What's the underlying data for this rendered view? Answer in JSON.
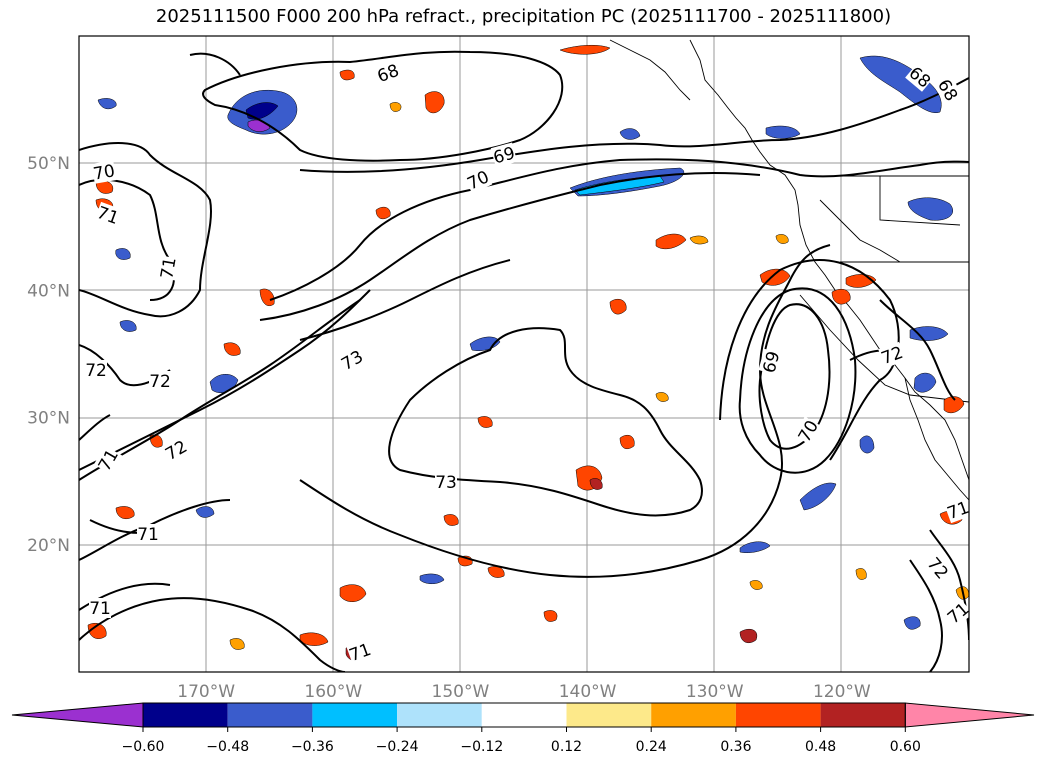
{
  "title": "2025111500 F000 200 hPa refract., precipitation PC (2025111700 - 2025111800)",
  "lat_ticks": [
    {
      "label": "50°N",
      "lat": 50
    },
    {
      "label": "40°N",
      "lat": 40
    },
    {
      "label": "30°N",
      "lat": 30
    },
    {
      "label": "20°N",
      "lat": 20
    }
  ],
  "lon_ticks": [
    {
      "label": "170°W",
      "lon": -170
    },
    {
      "label": "160°W",
      "lon": -160
    },
    {
      "label": "150°W",
      "lon": -150
    },
    {
      "label": "140°W",
      "lon": -140
    },
    {
      "label": "130°W",
      "lon": -130
    },
    {
      "label": "120°W",
      "lon": -120
    }
  ],
  "contour_labels": [
    "68",
    "68",
    "68",
    "69",
    "70",
    "70",
    "71",
    "71",
    "72",
    "72",
    "73",
    "72",
    "71",
    "71",
    "73",
    "72",
    "71",
    "69",
    "70",
    "72",
    "71",
    "71",
    "71"
  ],
  "colorbar": {
    "colors": [
      "#9b30d0",
      "#00008b",
      "#3a5ccc",
      "#00bfff",
      "#aee2fb",
      "#ffffff",
      "#fde98a",
      "#ffa000",
      "#ff4500",
      "#b22222",
      "#ff85a8"
    ],
    "labels": [
      "−0.60",
      "−0.48",
      "−0.36",
      "−0.24",
      "−0.12",
      "0.12",
      "0.24",
      "0.36",
      "0.48",
      "0.60"
    ]
  }
}
